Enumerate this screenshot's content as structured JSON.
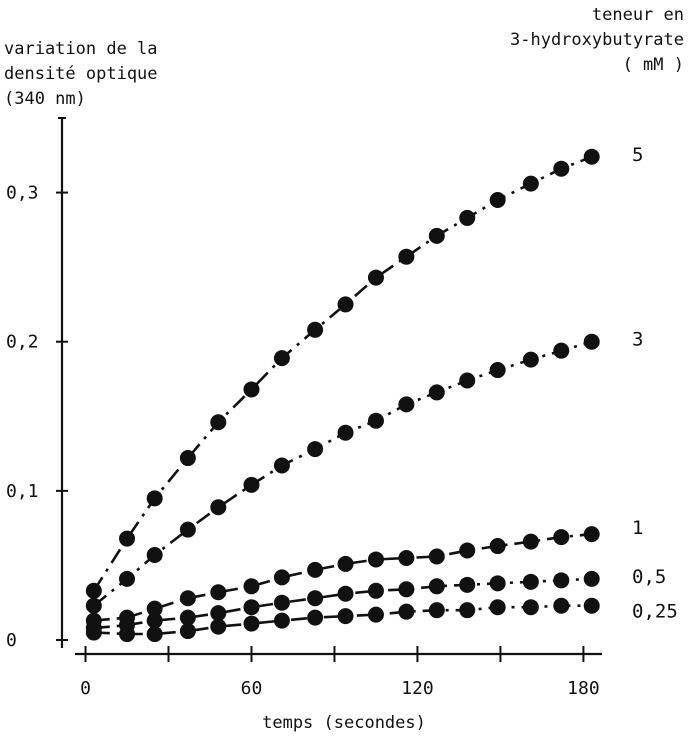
{
  "chart_data": {
    "type": "scatter",
    "ylabel_lines": [
      "variation de la",
      "densité optique",
      "(340 nm)"
    ],
    "legend_title_lines": [
      "teneur en",
      "3-hydroxybutyrate",
      "( mM )"
    ],
    "xlabel": "temps (secondes)",
    "xlim": [
      -2,
      186
    ],
    "ylim": [
      0,
      0.35
    ],
    "x_ticks": [
      0,
      60,
      120,
      180
    ],
    "x_tick_labels": [
      "0",
      "60",
      "120",
      "180"
    ],
    "y_ticks": [
      0,
      0.1,
      0.2,
      0.3
    ],
    "y_tick_labels": [
      "0",
      "0,1",
      "0,2",
      "0,3"
    ],
    "series": [
      {
        "name": "5",
        "x": [
          3,
          15,
          25,
          37,
          48,
          60,
          71,
          83,
          94,
          105,
          116,
          127,
          138,
          149,
          161,
          172,
          183
        ],
        "y": [
          0.033,
          0.068,
          0.095,
          0.122,
          0.146,
          0.168,
          0.189,
          0.208,
          0.225,
          0.243,
          0.257,
          0.271,
          0.283,
          0.295,
          0.306,
          0.316,
          0.324
        ]
      },
      {
        "name": "3",
        "x": [
          3,
          15,
          25,
          37,
          48,
          60,
          71,
          83,
          94,
          105,
          116,
          127,
          138,
          149,
          161,
          172,
          183
        ],
        "y": [
          0.023,
          0.041,
          0.057,
          0.074,
          0.089,
          0.104,
          0.117,
          0.128,
          0.139,
          0.147,
          0.158,
          0.166,
          0.174,
          0.181,
          0.188,
          0.194,
          0.2
        ]
      },
      {
        "name": "1",
        "x": [
          3,
          15,
          25,
          37,
          48,
          60,
          71,
          83,
          94,
          105,
          116,
          127,
          138,
          149,
          161,
          172,
          183
        ],
        "y": [
          0.013,
          0.015,
          0.021,
          0.028,
          0.032,
          0.036,
          0.042,
          0.047,
          0.051,
          0.054,
          0.055,
          0.056,
          0.06,
          0.063,
          0.066,
          0.069,
          0.071
        ]
      },
      {
        "name": "0,5",
        "x": [
          3,
          15,
          25,
          37,
          48,
          60,
          71,
          83,
          94,
          105,
          116,
          127,
          138,
          149,
          161,
          172,
          183
        ],
        "y": [
          0.008,
          0.01,
          0.013,
          0.015,
          0.018,
          0.022,
          0.025,
          0.028,
          0.031,
          0.033,
          0.034,
          0.036,
          0.037,
          0.038,
          0.039,
          0.04,
          0.041
        ]
      },
      {
        "name": "0,25",
        "x": [
          3,
          15,
          25,
          37,
          48,
          60,
          71,
          83,
          94,
          105,
          116,
          127,
          138,
          149,
          161,
          172,
          183
        ],
        "y": [
          0.005,
          0.004,
          0.004,
          0.006,
          0.009,
          0.011,
          0.013,
          0.015,
          0.016,
          0.017,
          0.019,
          0.02,
          0.02,
          0.022,
          0.022,
          0.023,
          0.023
        ]
      }
    ],
    "grid": false,
    "legend": "right, labels at curve ends"
  }
}
